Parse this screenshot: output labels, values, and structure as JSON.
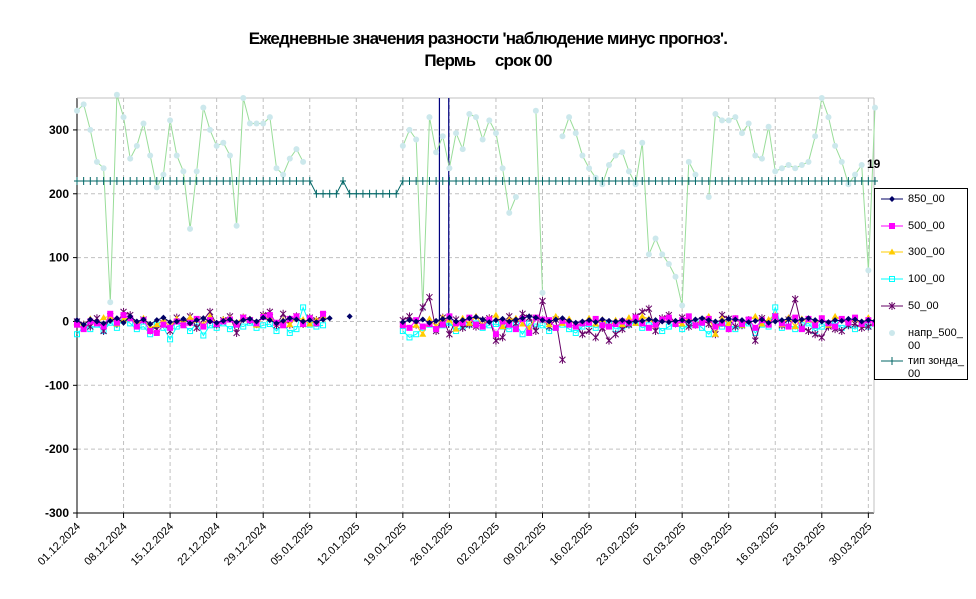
{
  "title_line1": "Ежедневные значения разности 'наблюдение минус прогноз'.",
  "title_line2": "Пермь     срок 00",
  "colors": {
    "s850": "#000066",
    "s500": "#ff00ff",
    "s300": "#ffcc00",
    "s100": "#00ffff",
    "s50": "#660066",
    "napr": "#cce8ec",
    "napr_line": "#99dd99",
    "tip": "#006666",
    "grid": "#c0c0c0",
    "vline": "#000080"
  },
  "chart_data": {
    "type": "line",
    "title": "Ежедневные значения разности 'наблюдение минус прогноз'. Пермь     срок 00",
    "ylim": [
      -300,
      350
    ],
    "yticks": [
      -300,
      -200,
      -100,
      0,
      100,
      200,
      300
    ],
    "ytick_labels": [
      "-300",
      "-200",
      "-100",
      "0",
      "100",
      "200",
      "300"
    ],
    "x_start": "01.12.2024",
    "x_days": 121,
    "xticks": [
      "01.12.2024",
      "08.12.2024",
      "15.12.2024",
      "22.12.2024",
      "29.12.2024",
      "05.01.2025",
      "12.01.2025",
      "19.01.2025",
      "26.01.2025",
      "02.02.2025",
      "09.02.2025",
      "16.02.2025",
      "23.02.2025",
      "02.03.2025",
      "09.03.2025",
      "16.03.2025",
      "23.03.2025",
      "30.03.2025"
    ],
    "grid": true,
    "legend_position": "right",
    "annotation": "19",
    "series": [
      {
        "name": "850_00",
        "key": "s850",
        "marker": "diamond",
        "values": [
          2,
          -5,
          3,
          0,
          -3,
          1,
          5,
          -2,
          8,
          0,
          3,
          -4,
          2,
          6,
          -1,
          0,
          4,
          -3,
          2,
          5,
          0,
          -2,
          1,
          3,
          -1,
          2,
          4,
          0,
          6,
          2,
          -3,
          1,
          5,
          3,
          0,
          2,
          -1,
          3,
          5,
          null,
          null,
          8,
          null,
          null,
          null,
          null,
          null,
          null,
          null,
          -1,
          2,
          0,
          3,
          -2,
          1,
          4,
          6,
          0,
          2,
          5,
          7,
          3,
          -1,
          2,
          4,
          0,
          3,
          5,
          8,
          6,
          2,
          0,
          3,
          5,
          1,
          -2,
          0,
          2,
          -1,
          3,
          1,
          0,
          2,
          -1,
          0,
          1,
          3,
          2,
          0,
          -1,
          1,
          2,
          0,
          3,
          5,
          2,
          0,
          1,
          4,
          3,
          2,
          -1,
          1,
          3,
          -2,
          0,
          2,
          4,
          1,
          3,
          5,
          2,
          0,
          -1,
          2,
          1,
          4,
          3,
          0,
          2,
          1
        ]
      },
      {
        "name": "500_00",
        "key": "s500",
        "marker": "square",
        "values": [
          -5,
          -12,
          0,
          -3,
          -8,
          12,
          -2,
          10,
          5,
          -8,
          2,
          -15,
          -18,
          -5,
          -10,
          0,
          -6,
          -2,
          4,
          -8,
          2,
          -4,
          0,
          3,
          -5,
          6,
          2,
          -3,
          7,
          10,
          -2,
          -6,
          4,
          8,
          -4,
          5,
          -3,
          12,
          null,
          null,
          null,
          null,
          null,
          null,
          null,
          null,
          null,
          null,
          null,
          -6,
          -10,
          2,
          -8,
          -4,
          -12,
          -5,
          8,
          -3,
          -2,
          6,
          -5,
          -8,
          3,
          -20,
          0,
          -5,
          -12,
          4,
          -18,
          6,
          3,
          2,
          -10,
          1,
          -5,
          -8,
          -3,
          -2,
          4,
          -6,
          -8,
          -4,
          0,
          -2,
          6,
          -3,
          -10,
          -5,
          3,
          6,
          -4,
          2,
          8,
          -6,
          -2,
          4,
          -8,
          -3,
          -12,
          5,
          -4,
          3,
          -10,
          2,
          -5,
          8,
          -3,
          -8,
          6,
          -12,
          4,
          -6,
          5,
          -3,
          -8,
          4,
          -2,
          6,
          -4,
          2,
          -3
        ]
      },
      {
        "name": "300_00",
        "key": "s300",
        "marker": "triangle",
        "values": [
          -3,
          -5,
          4,
          -2,
          6,
          8,
          -4,
          3,
          7,
          -6,
          5,
          -10,
          -5,
          2,
          -8,
          4,
          -3,
          6,
          2,
          -5,
          8,
          -4,
          3,
          5,
          -2,
          7,
          4,
          -6,
          8,
          5,
          -3,
          2,
          -5,
          6,
          3,
          -4,
          2,
          8,
          null,
          null,
          null,
          null,
          null,
          null,
          null,
          null,
          null,
          null,
          null,
          -4,
          -10,
          -6,
          -20,
          4,
          -8,
          6,
          2,
          -12,
          5,
          -3,
          8,
          -6,
          4,
          10,
          -8,
          3,
          5,
          -4,
          -10,
          6,
          2,
          -5,
          8,
          -3,
          4,
          -6,
          -2,
          5,
          -4,
          3,
          -8,
          2,
          -5,
          6,
          -3,
          8,
          4,
          -6,
          3,
          5,
          -2,
          -4,
          6,
          -5,
          3,
          8,
          -20,
          4,
          -3,
          5,
          -6,
          2,
          8,
          -4,
          3,
          10,
          -5,
          6,
          -8,
          4,
          2,
          -3,
          5,
          -6,
          8,
          3,
          -2,
          4,
          -5,
          6,
          -3
        ]
      },
      {
        "name": "100_00",
        "key": "s100",
        "marker": "square-open",
        "values": [
          -20,
          -8,
          -12,
          -5,
          -15,
          -2,
          -10,
          5,
          -3,
          -12,
          -8,
          -20,
          -5,
          -10,
          -28,
          -8,
          -5,
          -15,
          -3,
          -22,
          -6,
          -10,
          -3,
          -12,
          -5,
          -8,
          -2,
          -10,
          -6,
          -4,
          -15,
          -3,
          -18,
          -12,
          22,
          -5,
          -8,
          -6,
          null,
          null,
          null,
          null,
          null,
          null,
          null,
          null,
          null,
          null,
          null,
          -15,
          -25,
          -20,
          -10,
          -5,
          -12,
          -6,
          -2,
          -15,
          -8,
          -5,
          -3,
          -10,
          -6,
          -4,
          -8,
          -12,
          -5,
          -20,
          -3,
          -8,
          -6,
          -15,
          -10,
          -5,
          -12,
          -18,
          -8,
          -4,
          -10,
          -6,
          -3,
          -12,
          -8,
          -5,
          -2,
          -10,
          -6,
          -4,
          -15,
          -8,
          -3,
          -12,
          -5,
          -2,
          -10,
          -20,
          -6,
          -8,
          -4,
          -12,
          -6,
          -3,
          -18,
          -5,
          -8,
          22,
          -10,
          -4,
          -12,
          -6,
          -3,
          -15,
          -8,
          -5,
          -2,
          -10,
          -6,
          -12,
          -4,
          -8,
          -3
        ]
      },
      {
        "name": "50_00",
        "key": "s50",
        "marker": "star",
        "values": [
          0,
          -5,
          -8,
          5,
          -15,
          8,
          -3,
          15,
          10,
          -5,
          3,
          -8,
          -12,
          -3,
          -15,
          6,
          -2,
          8,
          -10,
          3,
          15,
          -5,
          2,
          8,
          -18,
          6,
          2,
          -4,
          10,
          15,
          -6,
          12,
          -5,
          8,
          -4,
          6,
          2,
          10,
          null,
          null,
          null,
          null,
          null,
          null,
          null,
          null,
          null,
          null,
          null,
          2,
          8,
          -5,
          22,
          38,
          -15,
          6,
          -20,
          3,
          -10,
          -5,
          -8,
          2,
          5,
          -30,
          -25,
          8,
          -3,
          12,
          6,
          -15,
          32,
          -8,
          3,
          -60,
          null,
          -5,
          -20,
          -15,
          -25,
          -10,
          -30,
          -20,
          -12,
          -5,
          8,
          15,
          20,
          -15,
          5,
          10,
          -3,
          6,
          -8,
          -5,
          2,
          -4,
          -20,
          10,
          4,
          -8,
          -6,
          2,
          -30,
          5,
          -3,
          8,
          -6,
          3,
          35,
          -10,
          -15,
          -20,
          -25,
          -8,
          -12,
          -15,
          -6,
          -4,
          -10,
          -8,
          -3
        ]
      },
      {
        "name": "напр_500_00",
        "key": "napr",
        "marker": "circle",
        "values": [
          330,
          340,
          300,
          250,
          240,
          30,
          355,
          320,
          255,
          275,
          310,
          260,
          210,
          230,
          315,
          260,
          235,
          145,
          235,
          335,
          300,
          275,
          280,
          260,
          150,
          350,
          310,
          310,
          310,
          320,
          240,
          230,
          255,
          270,
          250,
          null,
          null,
          null,
          null,
          null,
          null,
          null,
          null,
          null,
          null,
          null,
          null,
          null,
          null,
          275,
          300,
          285,
          20,
          320,
          265,
          290,
          240,
          295,
          270,
          325,
          320,
          285,
          315,
          295,
          240,
          170,
          195,
          null,
          null,
          330,
          45,
          null,
          null,
          290,
          320,
          295,
          260,
          240,
          225,
          215,
          245,
          260,
          265,
          235,
          215,
          280,
          105,
          130,
          105,
          90,
          70,
          25,
          250,
          230,
          null,
          195,
          325,
          315,
          315,
          320,
          295,
          310,
          260,
          255,
          305,
          235,
          240,
          245,
          240,
          245,
          250,
          290,
          350,
          320,
          275,
          250,
          215,
          230,
          245,
          80,
          335
        ]
      },
      {
        "name": "тип зонда_00",
        "key": "tip",
        "marker": "plus",
        "values": [
          220,
          220,
          220,
          220,
          220,
          220,
          220,
          220,
          220,
          220,
          220,
          220,
          220,
          220,
          220,
          220,
          220,
          220,
          220,
          220,
          220,
          220,
          220,
          220,
          220,
          220,
          220,
          220,
          220,
          220,
          220,
          220,
          220,
          220,
          220,
          220,
          200,
          200,
          200,
          200,
          220,
          200,
          200,
          200,
          200,
          200,
          200,
          200,
          200,
          220,
          220,
          220,
          220,
          220,
          220,
          220,
          220,
          220,
          220,
          220,
          220,
          220,
          220,
          220,
          220,
          220,
          220,
          220,
          220,
          220,
          220,
          220,
          220,
          220,
          220,
          220,
          220,
          220,
          220,
          220,
          220,
          220,
          220,
          220,
          220,
          220,
          220,
          220,
          220,
          220,
          220,
          220,
          220,
          220,
          220,
          220,
          220,
          220,
          220,
          220,
          220,
          220,
          220,
          220,
          220,
          220,
          220,
          220,
          220,
          220,
          220,
          220,
          220,
          220,
          220,
          220,
          220,
          220,
          220,
          220,
          220
        ]
      }
    ]
  },
  "legend_items": [
    {
      "label": "850_00"
    },
    {
      "label": "500_00"
    },
    {
      "label": "300_00"
    },
    {
      "label": "100_00"
    },
    {
      "label": "50_00"
    },
    {
      "label": "напр_500_00"
    },
    {
      "label": "тип зонда_00"
    }
  ]
}
